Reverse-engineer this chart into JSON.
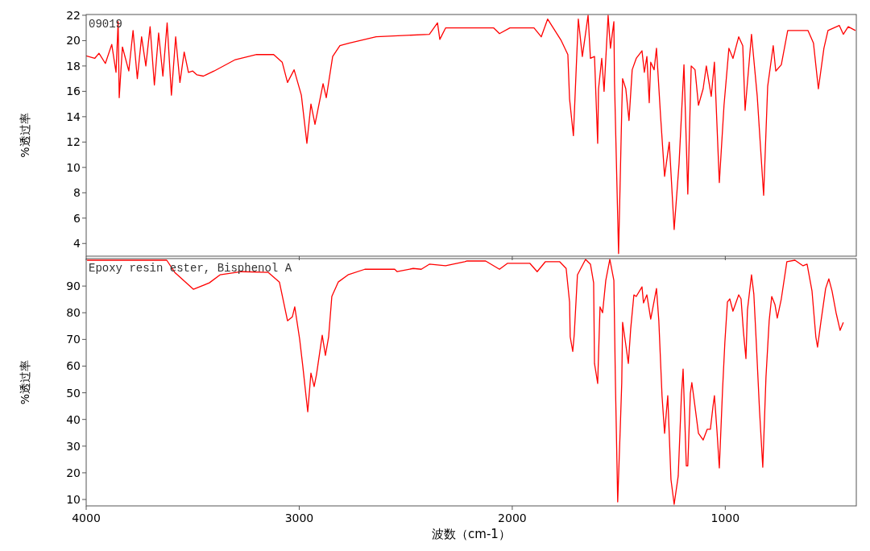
{
  "chart_data": [
    {
      "type": "line",
      "ylabel": "%透过率",
      "annotations": [
        "09019"
      ],
      "xlim": [
        4000,
        385
      ],
      "ylim": [
        3,
        22.06
      ],
      "xticks": [
        4000,
        3000,
        2000,
        1000
      ],
      "yticks": [
        4,
        6,
        8,
        10,
        12,
        14,
        16,
        18,
        20,
        22
      ],
      "tick_labels": "y",
      "grid": false,
      "series": [
        {
          "color": "#ff0000",
          "x": [
            4000,
            3960,
            3940,
            3910,
            3880,
            3860,
            3850,
            3845,
            3830,
            3800,
            3780,
            3760,
            3740,
            3720,
            3700,
            3680,
            3660,
            3640,
            3620,
            3600,
            3580,
            3560,
            3540,
            3520,
            3500,
            3480,
            3450,
            3400,
            3300,
            3200,
            3120,
            3080,
            3055,
            3024,
            2990,
            2964,
            2945,
            2926,
            2888,
            2873,
            2843,
            2809,
            2767,
            2639,
            2389,
            2351,
            2340,
            2313,
            2212,
            2087,
            2060,
            2011,
            1898,
            1864,
            1834,
            1770,
            1739,
            1731,
            1713,
            1701,
            1690,
            1671,
            1644,
            1633,
            1614,
            1599,
            1595,
            1580,
            1569,
            1550,
            1539,
            1523,
            1520,
            1501,
            1486,
            1482,
            1467,
            1452,
            1437,
            1418,
            1391,
            1380,
            1368,
            1357,
            1350,
            1334,
            1323,
            1304,
            1285,
            1263,
            1240,
            1217,
            1194,
            1176,
            1160,
            1142,
            1126,
            1104,
            1089,
            1066,
            1051,
            1028,
            1006,
            983,
            964,
            937,
            918,
            907,
            877,
            850,
            820,
            801,
            775,
            763,
            737,
            707,
            650,
            612,
            586,
            563,
            537,
            518,
            465,
            446,
            423,
            389
          ],
          "values": [
            18.8,
            18.6,
            19.0,
            18.2,
            19.7,
            17.5,
            21.5,
            15.5,
            19.5,
            17.6,
            20.8,
            17.0,
            20.3,
            18.0,
            21.1,
            16.5,
            20.6,
            17.2,
            21.4,
            15.7,
            20.3,
            16.7,
            19.1,
            17.5,
            17.6,
            17.3,
            17.2,
            17.6,
            18.5,
            18.9,
            18.9,
            18.3,
            16.7,
            17.7,
            15.7,
            11.9,
            15.0,
            13.4,
            16.6,
            15.5,
            18.75,
            19.6,
            19.8,
            20.3,
            20.5,
            21.4,
            20.1,
            21.0,
            21.0,
            21.0,
            20.55,
            21.0,
            21.0,
            20.3,
            21.7,
            20.0,
            18.9,
            15.4,
            12.5,
            17.3,
            21.7,
            18.75,
            22.0,
            18.6,
            18.75,
            11.9,
            16.2,
            18.6,
            16.0,
            22.0,
            19.4,
            21.5,
            16.7,
            3.2,
            14.5,
            17.0,
            16.2,
            13.7,
            17.7,
            18.6,
            19.2,
            17.5,
            18.75,
            15.1,
            18.3,
            17.7,
            19.4,
            14.1,
            9.3,
            12.0,
            5.1,
            10.3,
            18.1,
            7.9,
            18.0,
            17.7,
            14.9,
            16.2,
            18.0,
            15.6,
            18.3,
            8.8,
            14.9,
            19.4,
            18.6,
            20.3,
            19.6,
            14.5,
            20.5,
            15.6,
            7.8,
            16.4,
            19.6,
            17.6,
            18.1,
            20.8,
            20.8,
            20.8,
            19.8,
            16.2,
            19.4,
            20.8,
            21.2,
            20.5,
            21.1,
            20.8
          ]
        }
      ]
    },
    {
      "type": "line",
      "ylabel": "%透过率",
      "xlabel": "波数（cm-1）",
      "annotations": [
        "Epoxy resin ester, Bisphenol A"
      ],
      "xlim": [
        4000,
        385
      ],
      "ylim": [
        7.6,
        100.3
      ],
      "xticks": [
        4000,
        3000,
        2000,
        1000
      ],
      "yticks": [
        10,
        20,
        30,
        40,
        50,
        60,
        70,
        80,
        90
      ],
      "grid": false,
      "series": [
        {
          "color": "#ff0000",
          "x": [
            3996,
            3622,
            3584,
            3497,
            3422,
            3372,
            3270,
            3145,
            3093,
            3055,
            3032,
            3021,
            2998,
            2983,
            2960,
            2945,
            2930,
            2919,
            2892,
            2877,
            2862,
            2847,
            2817,
            2771,
            2692,
            2552,
            2540,
            2465,
            2427,
            2389,
            2313,
            2223,
            2212,
            2125,
            2060,
            2023,
            1917,
            1883,
            1845,
            1777,
            1747,
            1731,
            1728,
            1716,
            1709,
            1694,
            1656,
            1633,
            1618,
            1614,
            1599,
            1588,
            1576,
            1561,
            1542,
            1523,
            1516,
            1505,
            1493,
            1486,
            1482,
            1467,
            1455,
            1444,
            1429,
            1418,
            1391,
            1384,
            1368,
            1350,
            1323,
            1312,
            1297,
            1285,
            1270,
            1255,
            1240,
            1221,
            1206,
            1198,
            1183,
            1176,
            1164,
            1157,
            1142,
            1126,
            1104,
            1085,
            1070,
            1058,
            1051,
            1039,
            1028,
            1013,
            1002,
            990,
            979,
            964,
            937,
            926,
            915,
            903,
            896,
            877,
            866,
            854,
            839,
            824,
            809,
            794,
            782,
            767,
            756,
            737,
            711,
            673,
            635,
            616,
            593,
            575,
            567,
            552,
            529,
            514,
            499,
            480,
            461,
            446
          ],
          "values": [
            99.7,
            99.7,
            95.1,
            88.8,
            91.2,
            94.2,
            95.4,
            95.1,
            91.5,
            77.0,
            78.5,
            82.2,
            70.1,
            59.8,
            42.9,
            57.4,
            52.3,
            56.8,
            71.6,
            64.0,
            71.0,
            86.1,
            91.5,
            94.2,
            96.3,
            96.3,
            95.4,
            96.6,
            96.3,
            98.2,
            97.6,
            99.1,
            99.4,
            99.4,
            96.3,
            98.5,
            98.5,
            95.4,
            99.1,
            99.1,
            96.6,
            84.0,
            71.0,
            65.5,
            71.9,
            94.2,
            100.0,
            98.2,
            91.2,
            61.0,
            53.5,
            82.2,
            80.0,
            92.1,
            100.0,
            92.1,
            55.0,
            9.1,
            36.9,
            53.8,
            76.4,
            68.0,
            61.0,
            74.0,
            86.7,
            86.1,
            89.7,
            83.7,
            86.7,
            77.6,
            89.1,
            77.0,
            48.9,
            34.8,
            48.9,
            17.5,
            8.2,
            18.8,
            48.9,
            58.9,
            22.6,
            22.6,
            49.8,
            53.8,
            44.7,
            34.8,
            32.3,
            36.3,
            36.3,
            44.7,
            48.9,
            35.7,
            21.8,
            50.8,
            68.9,
            84.0,
            85.2,
            80.6,
            86.7,
            85.2,
            73.1,
            62.8,
            81.0,
            94.2,
            87.0,
            68.0,
            42.9,
            22.1,
            55.9,
            77.0,
            86.1,
            83.1,
            78.0,
            85.2,
            99.1,
            99.7,
            97.6,
            98.2,
            88.2,
            71.0,
            67.1,
            76.1,
            89.1,
            92.7,
            88.2,
            80.0,
            73.4,
            76.4
          ]
        }
      ]
    }
  ]
}
